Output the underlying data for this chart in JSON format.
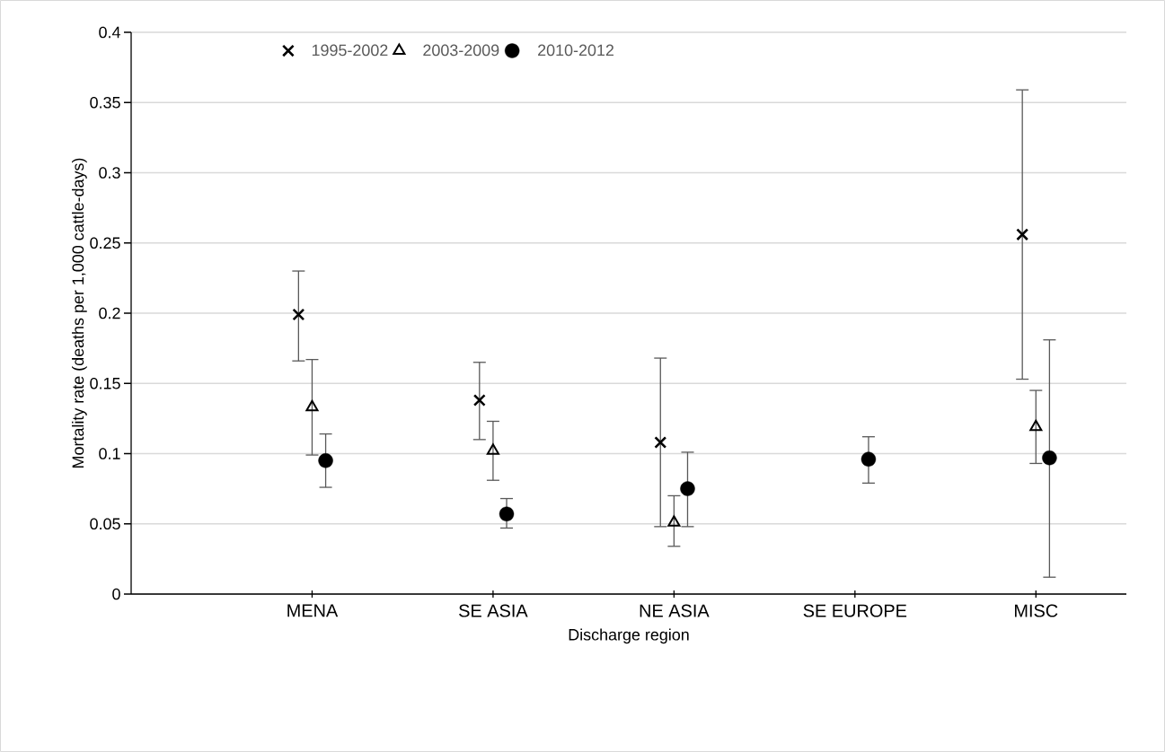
{
  "chart_data": {
    "type": "scatter",
    "xlabel": "Discharge region",
    "ylabel": "Mortality rate (deaths per 1,000 cattle-days)",
    "categories": [
      "MENA",
      "SE ASIA",
      "NE ASIA",
      "SE EUROPE",
      "MISC"
    ],
    "ylim": [
      0,
      0.4
    ],
    "yticks": [
      0,
      0.05,
      0.1,
      0.15,
      0.2,
      0.25,
      0.3,
      0.35,
      0.4
    ],
    "grid": "y",
    "legend": "top",
    "series": [
      {
        "name": "1995-2002",
        "color": "#000000",
        "marker": "cross",
        "values": [
          0.199,
          0.138,
          0.108,
          null,
          0.256
        ],
        "errors": [
          [
            0.166,
            0.23
          ],
          [
            0.11,
            0.165
          ],
          [
            0.048,
            0.168
          ],
          null,
          [
            0.153,
            0.359
          ]
        ]
      },
      {
        "name": "2003-2009",
        "color": "#000000",
        "marker": "triangle",
        "values": [
          0.133,
          0.102,
          0.051,
          null,
          0.119
        ],
        "errors": [
          [
            0.099,
            0.167
          ],
          [
            0.081,
            0.123
          ],
          [
            0.034,
            0.07
          ],
          null,
          [
            0.093,
            0.145
          ]
        ]
      },
      {
        "name": "2010-2012",
        "color": "#000000",
        "marker": "circle",
        "values": [
          0.095,
          0.057,
          0.075,
          0.096,
          0.097
        ],
        "errors": [
          [
            0.076,
            0.114
          ],
          [
            0.047,
            0.068
          ],
          [
            0.048,
            0.101
          ],
          [
            0.079,
            0.112
          ],
          [
            0.012,
            0.181
          ]
        ]
      }
    ]
  }
}
